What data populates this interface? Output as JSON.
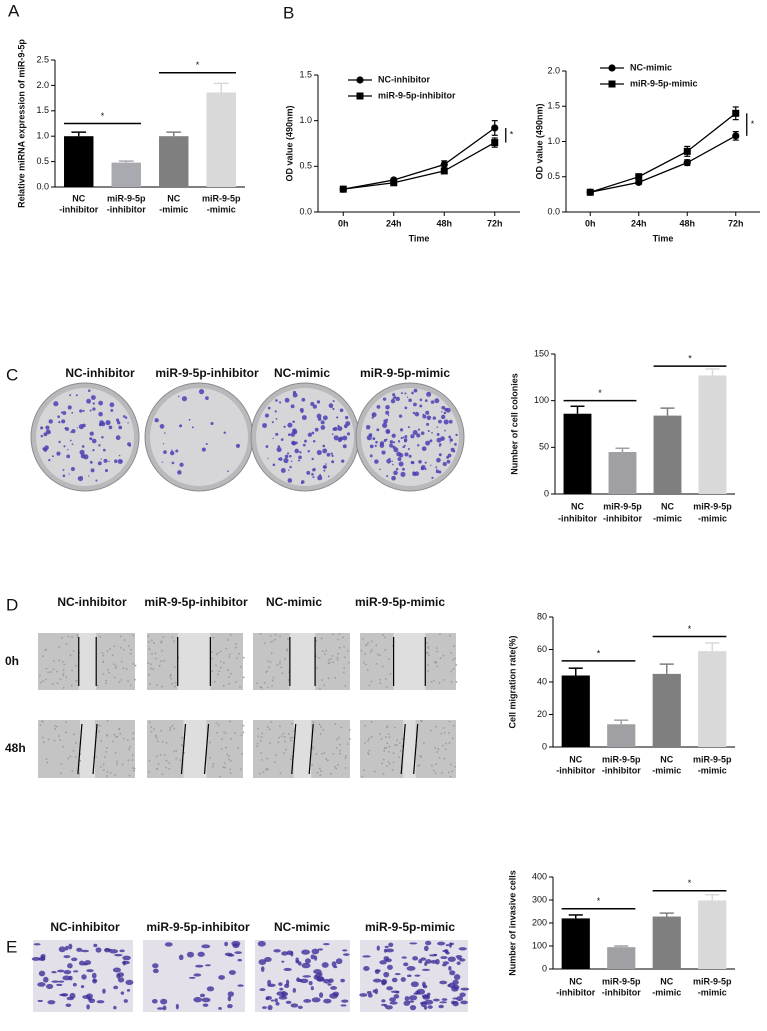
{
  "panel_labels": [
    "A",
    "B",
    "C",
    "D",
    "E"
  ],
  "colony_images": {
    "headers": [
      "NC-inhibitor",
      "miR-9-5p-inhibitor",
      "NC-mimic",
      "miR-9-5p-mimic"
    ]
  },
  "wound_images": {
    "headers": [
      "NC-inhibitor",
      "miR-9-5p-inhibitor",
      "NC-mimic",
      "miR-9-5p-mimic"
    ],
    "rows": [
      "0h",
      "48h"
    ]
  },
  "invasion_images": {
    "headers": [
      "NC-inhibitor",
      "miR-9-5p-inhibitor",
      "NC-mimic",
      "miR-9-5p-mimic"
    ]
  },
  "chart_data": [
    {
      "type": "bar",
      "ylabel": "Relative miRNA expression of miR-9-5p",
      "categories": [
        [
          "NC",
          "-inhibitor"
        ],
        [
          "miR-9-5p",
          "-inhibitor"
        ],
        [
          "NC",
          "-mimic"
        ],
        [
          "miR-9-5p",
          "-mimic"
        ]
      ],
      "values": [
        1.0,
        0.48,
        1.0,
        1.86
      ],
      "errors": [
        0.08,
        0.03,
        0.08,
        0.18
      ],
      "colors": [
        "#000000",
        "#a9a9b0",
        "#7f7f7f",
        "#d9d9d9"
      ],
      "ylim": [
        0,
        2.5
      ],
      "yticks": [
        {
          "value": 0,
          "label": "0.0"
        },
        0.5,
        {
          "value": 1,
          "label": "1.0"
        },
        1.5,
        {
          "value": 2,
          "label": "2.0"
        },
        2.5
      ],
      "annotations": [
        {
          "text": "*",
          "y": 1.25
        },
        {
          "text": "*",
          "y": 2.25
        }
      ]
    },
    {
      "type": "line",
      "ylabel": "OD value (490nm)",
      "xlabel": "Time",
      "categories": [
        "0h",
        "24h",
        "48h",
        "72h"
      ],
      "series": [
        {
          "name": "NC-inhibitor",
          "color": "#000000",
          "marker": "circle",
          "values": [
            0.25,
            0.35,
            0.52,
            0.92
          ],
          "errors": [
            0.01,
            0.02,
            0.04,
            0.08
          ]
        },
        {
          "name": "miR-9-5p-inhibitor",
          "color": "#000000",
          "marker": "square",
          "values": [
            0.25,
            0.32,
            0.45,
            0.76
          ],
          "errors": [
            0.01,
            0.02,
            0.03,
            0.05
          ]
        }
      ],
      "ylim": [
        0,
        1.5
      ],
      "yticks": [
        {
          "value": 0,
          "label": "0.0"
        },
        0.5,
        {
          "value": 1,
          "label": "1.0"
        },
        1.5
      ],
      "legend": "upper left",
      "annotations": [
        {
          "text": "*"
        }
      ]
    },
    {
      "type": "line",
      "ylabel": "OD value (490nm)",
      "xlabel": "Time",
      "categories": [
        "0h",
        "24h",
        "48h",
        "72h"
      ],
      "series": [
        {
          "name": "NC-mimic",
          "color": "#000000",
          "marker": "circle",
          "values": [
            0.28,
            0.42,
            0.7,
            1.08
          ],
          "errors": [
            0.02,
            0.03,
            0.04,
            0.06
          ]
        },
        {
          "name": "miR-9-5p-mimic",
          "color": "#000000",
          "marker": "square",
          "values": [
            0.28,
            0.5,
            0.86,
            1.4
          ],
          "errors": [
            0.02,
            0.04,
            0.07,
            0.09
          ]
        }
      ],
      "ylim": [
        0,
        2
      ],
      "yticks": [
        {
          "value": 0,
          "label": "0.0"
        },
        0.5,
        {
          "value": 1,
          "label": "1.0"
        },
        1.5,
        {
          "value": 2,
          "label": "2.0"
        }
      ],
      "legend": "upper left",
      "annotations": [
        {
          "text": "*"
        }
      ]
    },
    {
      "type": "bar",
      "ylabel": "Number of cell colonies",
      "categories": [
        [
          "NC",
          "-inhibitor"
        ],
        [
          "miR-9-5p",
          "-inhibitor"
        ],
        [
          "NC",
          "-mimic"
        ],
        [
          "miR-9-5p",
          "-mimic"
        ]
      ],
      "values": [
        86,
        45,
        84,
        127
      ],
      "errors": [
        8,
        4,
        8,
        7
      ],
      "colors": [
        "#000000",
        "#a0a0a4",
        "#7f7f7f",
        "#d9d9d9"
      ],
      "ylim": [
        0,
        150
      ],
      "yticks": [
        0,
        50,
        100,
        150
      ],
      "annotations": [
        {
          "text": "*",
          "y": 100
        },
        {
          "text": "*",
          "y": 137
        }
      ]
    },
    {
      "type": "bar",
      "ylabel": "Cell migration rate(%)",
      "categories": [
        [
          "NC",
          "-inhibitor"
        ],
        [
          "miR-9-5p",
          "-inhibitor"
        ],
        [
          "NC",
          "-mimic"
        ],
        [
          "miR-9-5p",
          "-mimic"
        ]
      ],
      "values": [
        44,
        14,
        45,
        59
      ],
      "errors": [
        4.5,
        2.5,
        6,
        5
      ],
      "colors": [
        "#000000",
        "#a0a0a4",
        "#7f7f7f",
        "#d9d9d9"
      ],
      "ylim": [
        0,
        80
      ],
      "yticks": [
        0,
        20,
        40,
        60,
        80
      ],
      "annotations": [
        {
          "text": "*",
          "y": 53
        },
        {
          "text": "*",
          "y": 68
        }
      ]
    },
    {
      "type": "bar",
      "ylabel": "Number of invasive cells",
      "categories": [
        [
          "NC",
          "-inhibitor"
        ],
        [
          "miR-9-5p",
          "-inhibitor"
        ],
        [
          "NC",
          "-mimic"
        ],
        [
          "miR-9-5p",
          "-mimic"
        ]
      ],
      "values": [
        220,
        95,
        228,
        298
      ],
      "errors": [
        15,
        5,
        15,
        25
      ],
      "colors": [
        "#000000",
        "#a0a0a4",
        "#7f7f7f",
        "#d9d9d9"
      ],
      "ylim": [
        0,
        400
      ],
      "yticks": [
        0,
        100,
        200,
        300,
        400
      ],
      "annotations": [
        {
          "text": "*",
          "y": 262
        },
        {
          "text": "*",
          "y": 340
        }
      ]
    }
  ]
}
